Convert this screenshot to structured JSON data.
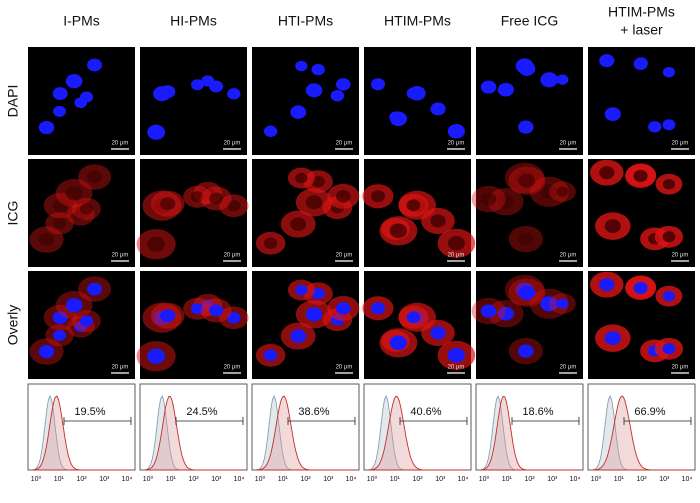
{
  "columns": [
    {
      "title": [
        "I-PMs"
      ],
      "percent": "19.5%"
    },
    {
      "title": [
        "HI-PMs"
      ],
      "percent": "24.5%"
    },
    {
      "title": [
        "HTI-PMs"
      ],
      "percent": "38.6%"
    },
    {
      "title": [
        "HTIM-PMs"
      ],
      "percent": "40.6%"
    },
    {
      "title": [
        "Free ICG"
      ],
      "percent": "18.6%"
    },
    {
      "title": [
        "HTIM-PMs",
        "+ laser"
      ],
      "percent": "66.9%"
    }
  ],
  "rows": [
    "DAPI",
    "ICG",
    "Overly"
  ],
  "scale_bar": "20 μm",
  "histogram_ticks": [
    "10⁰",
    "10¹",
    "10²",
    "10³",
    "10⁴"
  ]
}
